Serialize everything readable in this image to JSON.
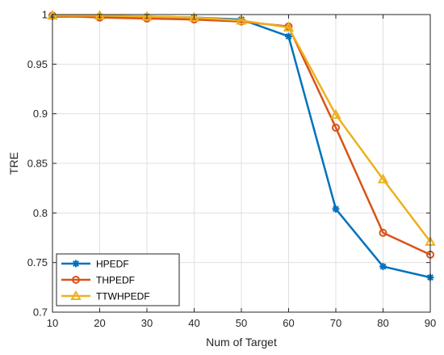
{
  "chart_data": {
    "type": "line",
    "title": "",
    "xlabel": "Num of Target",
    "ylabel": "TRE",
    "x": [
      10,
      20,
      30,
      40,
      50,
      60,
      70,
      80,
      90
    ],
    "xlim": [
      10,
      90
    ],
    "ylim": [
      0.7,
      1.0
    ],
    "xticks": [
      "10",
      "20",
      "30",
      "40",
      "50",
      "60",
      "70",
      "80",
      "90"
    ],
    "yticks": [
      "0.7",
      "0.75",
      "0.8",
      "0.85",
      "0.9",
      "0.95",
      "1"
    ],
    "grid": true,
    "legend_position": "bottom-left",
    "series": [
      {
        "name": "HPEDF",
        "color": "#0072BD",
        "marker": "asterisk",
        "values": [
          0.998,
          0.998,
          0.998,
          0.997,
          0.995,
          0.978,
          0.804,
          0.746,
          0.735
        ]
      },
      {
        "name": "THPEDF",
        "color": "#D95319",
        "marker": "circle",
        "values": [
          0.999,
          0.997,
          0.996,
          0.995,
          0.993,
          0.988,
          0.886,
          0.78,
          0.758
        ]
      },
      {
        "name": "TTWHPEDF",
        "color": "#EDB120",
        "marker": "triangle",
        "values": [
          0.999,
          0.999,
          0.998,
          0.997,
          0.994,
          0.987,
          0.899,
          0.834,
          0.771
        ]
      }
    ]
  }
}
